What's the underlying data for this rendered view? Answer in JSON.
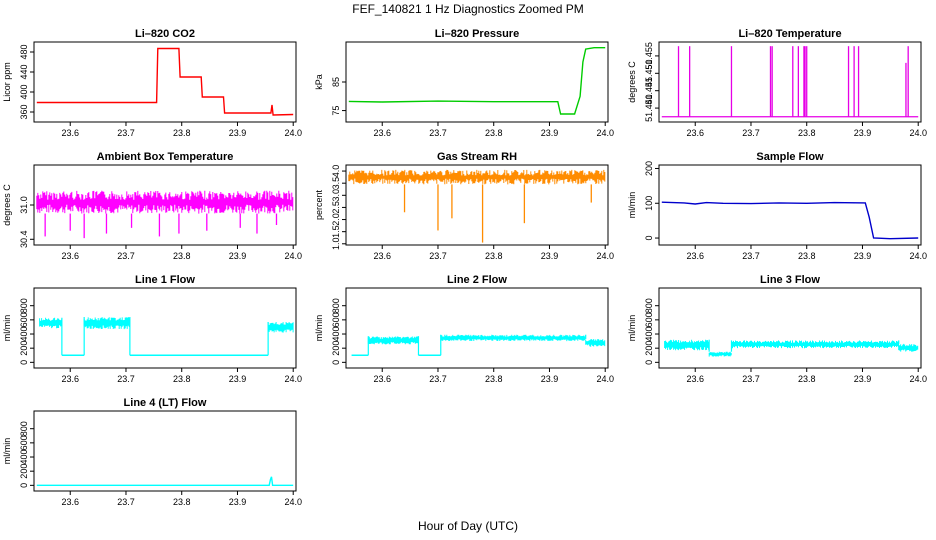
{
  "figure": {
    "title": "FEF_140821  1 Hz Diagnostics Zoomed PM",
    "xlabel": "Hour of Day (UTC)"
  },
  "chart_data": [
    {
      "type": "line",
      "title": "Li–820 CO2",
      "ylabel": "Licor ppm",
      "color": "#ff0000",
      "xlim": [
        23.535,
        24.005
      ],
      "ylim": [
        340,
        500
      ],
      "xticks": [
        "23.6",
        "23.7",
        "23.8",
        "23.9",
        "24.0"
      ],
      "yticks": [
        360,
        400,
        440,
        480
      ],
      "series": [
        {
          "x": [
            23.54,
            23.755,
            23.757,
            23.795,
            23.797,
            23.835,
            23.837,
            23.875,
            23.877,
            23.96,
            23.962,
            23.964,
            24.0
          ],
          "y": [
            379,
            379,
            487,
            487,
            430,
            430,
            390,
            390,
            358,
            358,
            374,
            354,
            355
          ]
        }
      ]
    },
    {
      "type": "line",
      "title": "Li–820 Pressure",
      "ylabel": "kPa",
      "color": "#00cc00",
      "xlim": [
        23.535,
        24.005
      ],
      "ylim": [
        71,
        99
      ],
      "xticks": [
        "23.6",
        "23.7",
        "23.8",
        "23.9",
        "24.0"
      ],
      "yticks": [
        75,
        85
      ],
      "series": [
        {
          "x": [
            23.54,
            23.6,
            23.7,
            23.8,
            23.915,
            23.92,
            23.945,
            23.955,
            23.96,
            23.965,
            23.98,
            24.0
          ],
          "y": [
            78.2,
            78,
            78.3,
            78.1,
            78.1,
            73.8,
            73.8,
            80,
            92,
            96.5,
            97,
            97
          ]
        }
      ]
    },
    {
      "type": "line",
      "title": "Li–820 Temperature",
      "ylabel": "degrees C",
      "color": "#e600e6",
      "xlim": [
        23.535,
        24.005
      ],
      "ylim": [
        51.436,
        51.459
      ],
      "xticks": [
        "23.6",
        "23.7",
        "23.8",
        "23.9",
        "24.0"
      ],
      "yticks": [
        "51.440",
        "51.445",
        "51.450",
        "51.455"
      ],
      "baseline": 51.4375,
      "spikes": [
        {
          "x": 23.57,
          "to": 51.4578
        },
        {
          "x": 23.59,
          "to": 51.4578
        },
        {
          "x": 23.665,
          "to": 51.4578
        },
        {
          "x": 23.735,
          "to": 51.4578
        },
        {
          "x": 23.738,
          "to": 51.4578
        },
        {
          "x": 23.775,
          "to": 51.4578
        },
        {
          "x": 23.785,
          "to": 51.4578
        },
        {
          "x": 23.795,
          "to": 51.4578
        },
        {
          "x": 23.797,
          "to": 51.4578
        },
        {
          "x": 23.8,
          "to": 51.4578
        },
        {
          "x": 23.875,
          "to": 51.4578
        },
        {
          "x": 23.885,
          "to": 51.4578
        },
        {
          "x": 23.893,
          "to": 51.4578
        },
        {
          "x": 23.978,
          "to": 51.453
        },
        {
          "x": 23.982,
          "to": 51.4578
        }
      ]
    },
    {
      "type": "line",
      "title": "Ambient Box Temperature",
      "ylabel": "degrees C",
      "color": "#ff00ff",
      "xlim": [
        23.535,
        24.005
      ],
      "ylim": [
        30.3,
        31.7
      ],
      "xticks": [
        "23.6",
        "23.7",
        "23.8",
        "23.9",
        "24.0"
      ],
      "yticks": [
        "30.4",
        "31.0"
      ],
      "band": {
        "low": 30.85,
        "high": 31.25
      },
      "dips": [
        {
          "x": 23.555,
          "to": 30.45
        },
        {
          "x": 23.6,
          "to": 30.55
        },
        {
          "x": 23.625,
          "to": 30.42
        },
        {
          "x": 23.665,
          "to": 30.5
        },
        {
          "x": 23.71,
          "to": 30.6
        },
        {
          "x": 23.76,
          "to": 30.45
        },
        {
          "x": 23.795,
          "to": 30.5
        },
        {
          "x": 23.845,
          "to": 30.55
        },
        {
          "x": 23.905,
          "to": 30.6
        },
        {
          "x": 23.935,
          "to": 30.5
        },
        {
          "x": 23.97,
          "to": 30.65
        }
      ]
    },
    {
      "type": "scatter",
      "title": "Gas Stream RH",
      "ylabel": "percent",
      "color": "#ff8c00",
      "xlim": [
        23.535,
        24.005
      ],
      "ylim": [
        0.95,
        4.25
      ],
      "xticks": [
        "23.6",
        "23.7",
        "23.8",
        "23.9",
        "24.0"
      ],
      "yticks": [
        "1.0",
        "1.5",
        "2.0",
        "2.5",
        "3.0",
        "3.5",
        "4.0"
      ],
      "band": {
        "low": 3.45,
        "high": 4.05
      },
      "dips": [
        {
          "x": 23.64,
          "to": 2.3
        },
        {
          "x": 23.7,
          "to": 1.55
        },
        {
          "x": 23.725,
          "to": 2.05
        },
        {
          "x": 23.78,
          "to": 1.05
        },
        {
          "x": 23.855,
          "to": 1.85
        },
        {
          "x": 23.975,
          "to": 2.7
        }
      ]
    },
    {
      "type": "line",
      "title": "Sample Flow",
      "ylabel": "ml/min",
      "color": "#0000cc",
      "xlim": [
        23.535,
        24.005
      ],
      "ylim": [
        -20,
        210
      ],
      "xticks": [
        "23.6",
        "23.7",
        "23.8",
        "23.9",
        "24.0"
      ],
      "yticks": [
        0,
        100,
        200
      ],
      "series": [
        {
          "x": [
            23.54,
            23.58,
            23.6,
            23.62,
            23.65,
            23.7,
            23.75,
            23.8,
            23.85,
            23.905,
            23.912,
            23.92,
            23.95,
            24.0
          ],
          "y": [
            103,
            101,
            98,
            102,
            100,
            99,
            101,
            100,
            102,
            101,
            60,
            0,
            -2,
            0
          ]
        }
      ]
    },
    {
      "type": "line",
      "title": "Line 1 Flow",
      "ylabel": "ml/min",
      "color": "#00ffff",
      "xlim": [
        23.535,
        24.005
      ],
      "ylim": [
        -80,
        1050
      ],
      "xticks": [
        "23.6",
        "23.7",
        "23.8",
        "23.9",
        "24.0"
      ],
      "yticks": [
        0,
        200,
        400,
        600,
        800
      ],
      "segments": [
        {
          "x0": 23.545,
          "x1": 23.585,
          "low": 480,
          "high": 630
        },
        {
          "x0": 23.585,
          "x1": 23.625,
          "low": 100,
          "high": 100
        },
        {
          "x0": 23.625,
          "x1": 23.707,
          "low": 470,
          "high": 640
        },
        {
          "x0": 23.707,
          "x1": 23.955,
          "low": 100,
          "high": 100
        },
        {
          "x0": 23.955,
          "x1": 24.0,
          "low": 420,
          "high": 570
        }
      ]
    },
    {
      "type": "line",
      "title": "Line 2 Flow",
      "ylabel": "ml/min",
      "color": "#00ffff",
      "xlim": [
        23.535,
        24.005
      ],
      "ylim": [
        -80,
        1050
      ],
      "xticks": [
        "23.6",
        "23.7",
        "23.8",
        "23.9",
        "24.0"
      ],
      "yticks": [
        0,
        200,
        400,
        600,
        800
      ],
      "segments": [
        {
          "x0": 23.545,
          "x1": 23.575,
          "low": 100,
          "high": 100
        },
        {
          "x0": 23.575,
          "x1": 23.665,
          "low": 250,
          "high": 370
        },
        {
          "x0": 23.665,
          "x1": 23.705,
          "low": 100,
          "high": 100
        },
        {
          "x0": 23.705,
          "x1": 23.965,
          "low": 300,
          "high": 390
        },
        {
          "x0": 23.965,
          "x1": 24.0,
          "low": 220,
          "high": 330
        }
      ]
    },
    {
      "type": "line",
      "title": "Line 3 Flow",
      "ylabel": "ml/min",
      "color": "#00ffff",
      "xlim": [
        23.535,
        24.005
      ],
      "ylim": [
        -80,
        1050
      ],
      "xticks": [
        "23.6",
        "23.7",
        "23.8",
        "23.9",
        "24.0"
      ],
      "yticks": [
        0,
        200,
        400,
        600,
        800
      ],
      "segments": [
        {
          "x0": 23.545,
          "x1": 23.625,
          "low": 170,
          "high": 320
        },
        {
          "x0": 23.625,
          "x1": 23.665,
          "low": 80,
          "high": 150
        },
        {
          "x0": 23.665,
          "x1": 23.965,
          "low": 200,
          "high": 310
        },
        {
          "x0": 23.965,
          "x1": 24.0,
          "low": 150,
          "high": 260
        }
      ]
    },
    {
      "type": "line",
      "title": "Line 4 (LT) Flow",
      "ylabel": "ml/min",
      "color": "#00ffff",
      "xlim": [
        23.535,
        24.005
      ],
      "ylim": [
        -80,
        1050
      ],
      "xticks": [
        "23.6",
        "23.7",
        "23.8",
        "23.9",
        "24.0"
      ],
      "yticks": [
        0,
        200,
        400,
        600,
        800
      ],
      "series": [
        {
          "x": [
            23.54,
            23.957,
            23.959,
            23.961,
            23.963,
            24.0
          ],
          "y": [
            0,
            0,
            80,
            120,
            0,
            0
          ]
        }
      ]
    }
  ]
}
